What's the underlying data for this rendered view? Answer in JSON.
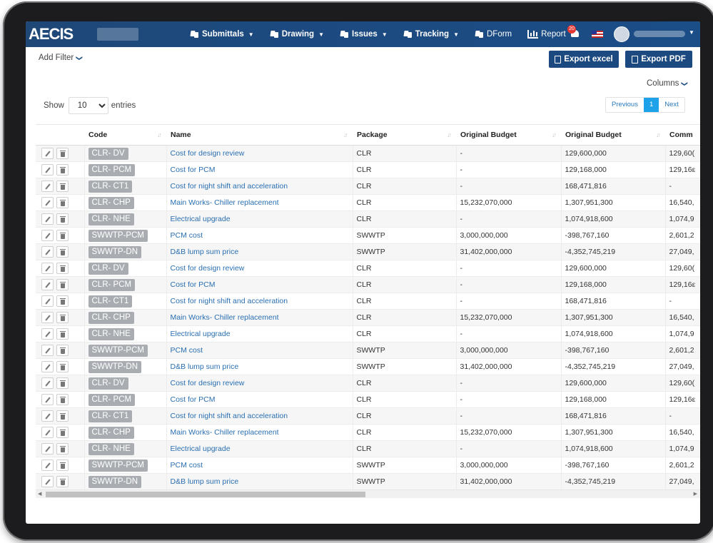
{
  "app": {
    "logo": "AECIS"
  },
  "nav": {
    "items": [
      {
        "label": "Submittals",
        "dropdown": true
      },
      {
        "label": "Drawing",
        "dropdown": true
      },
      {
        "label": "Issues",
        "dropdown": true
      },
      {
        "label": "Tracking",
        "dropdown": true
      },
      {
        "label": "DForm",
        "dropdown": false
      },
      {
        "label": "Report",
        "dropdown": false
      }
    ],
    "notification_count": "20",
    "caret": "▼"
  },
  "toolbar": {
    "add_filter": "Add Filter",
    "export_excel": "Export excel",
    "export_pdf": "Export PDF",
    "columns": "Columns",
    "chevron": "❯"
  },
  "listing": {
    "show_label": "Show",
    "entries_value": "10",
    "entries_label": "entries"
  },
  "pagination": {
    "previous": "Previous",
    "current": "1",
    "next": "Next"
  },
  "table": {
    "headers": [
      "Code",
      "Name",
      "Package",
      "Original Budget",
      "Original Budget",
      "Comm"
    ],
    "rows": [
      [
        "CLR- DV",
        "Cost for design review",
        "CLR",
        "-",
        "129,600,000",
        "129,60("
      ],
      [
        "CLR- PCM",
        "Cost for PCM",
        "CLR",
        "-",
        "129,168,000",
        "129,16ε"
      ],
      [
        "CLR- CT1",
        "Cost for night shift and acceleration",
        "CLR",
        "-",
        "168,471,816",
        "-"
      ],
      [
        "CLR- CHP",
        "Main Works- Chiller replacement",
        "CLR",
        "15,232,070,000",
        "1,307,951,300",
        "16,540,"
      ],
      [
        "CLR- NHE",
        "Electrical upgrade",
        "CLR",
        "-",
        "1,074,918,600",
        "1,074,9"
      ],
      [
        "SWWTP-PCM",
        "PCM cost",
        "SWWTP",
        "3,000,000,000",
        "-398,767,160",
        "2,601,2"
      ],
      [
        "SWWTP-DN",
        "D&B lump sum price",
        "SWWTP",
        "31,402,000,000",
        "-4,352,745,219",
        "27,049,"
      ],
      [
        "CLR- DV",
        "Cost for design review",
        "CLR",
        "-",
        "129,600,000",
        "129,60("
      ],
      [
        "CLR- PCM",
        "Cost for PCM",
        "CLR",
        "-",
        "129,168,000",
        "129,16ε"
      ],
      [
        "CLR- CT1",
        "Cost for night shift and acceleration",
        "CLR",
        "-",
        "168,471,816",
        "-"
      ],
      [
        "CLR- CHP",
        "Main Works- Chiller replacement",
        "CLR",
        "15,232,070,000",
        "1,307,951,300",
        "16,540,"
      ],
      [
        "CLR- NHE",
        "Electrical upgrade",
        "CLR",
        "-",
        "1,074,918,600",
        "1,074,9"
      ],
      [
        "SWWTP-PCM",
        "PCM cost",
        "SWWTP",
        "3,000,000,000",
        "-398,767,160",
        "2,601,2"
      ],
      [
        "SWWTP-DN",
        "D&B lump sum price",
        "SWWTP",
        "31,402,000,000",
        "-4,352,745,219",
        "27,049,"
      ],
      [
        "CLR- DV",
        "Cost for design review",
        "CLR",
        "-",
        "129,600,000",
        "129,60("
      ],
      [
        "CLR- PCM",
        "Cost for PCM",
        "CLR",
        "-",
        "129,168,000",
        "129,16ε"
      ],
      [
        "CLR- CT1",
        "Cost for night shift and acceleration",
        "CLR",
        "-",
        "168,471,816",
        "-"
      ],
      [
        "CLR- CHP",
        "Main Works- Chiller replacement",
        "CLR",
        "15,232,070,000",
        "1,307,951,300",
        "16,540,"
      ],
      [
        "CLR- NHE",
        "Electrical upgrade",
        "CLR",
        "-",
        "1,074,918,600",
        "1,074,9"
      ],
      [
        "SWWTP-PCM",
        "PCM cost",
        "SWWTP",
        "3,000,000,000",
        "-398,767,160",
        "2,601,2"
      ],
      [
        "SWWTP-DN",
        "D&B lump sum price",
        "SWWTP",
        "31,402,000,000",
        "-4,352,745,219",
        "27,049,"
      ]
    ]
  },
  "colors": {
    "nav_bg": "#1c4a80",
    "link": "#2a6fb1",
    "badge_gray": "#a9adb2",
    "pager_active": "#1da1e9"
  }
}
